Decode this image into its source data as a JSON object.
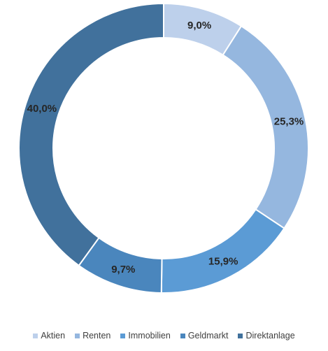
{
  "chart_data": {
    "type": "pie",
    "variant": "donut",
    "categories": [
      "Aktien",
      "Renten",
      "Immobilien",
      "Geldmarkt",
      "Direktanlage"
    ],
    "values": [
      9.0,
      25.3,
      15.9,
      9.7,
      40.0
    ],
    "labels": [
      "9,0%",
      "25,3%",
      "15,9%",
      "9,7%",
      "40,0%"
    ],
    "colors": [
      "#bdd0eb",
      "#95b7df",
      "#5b9bd5",
      "#4a86bd",
      "#41719c"
    ],
    "legend_position": "bottom",
    "title": ""
  }
}
